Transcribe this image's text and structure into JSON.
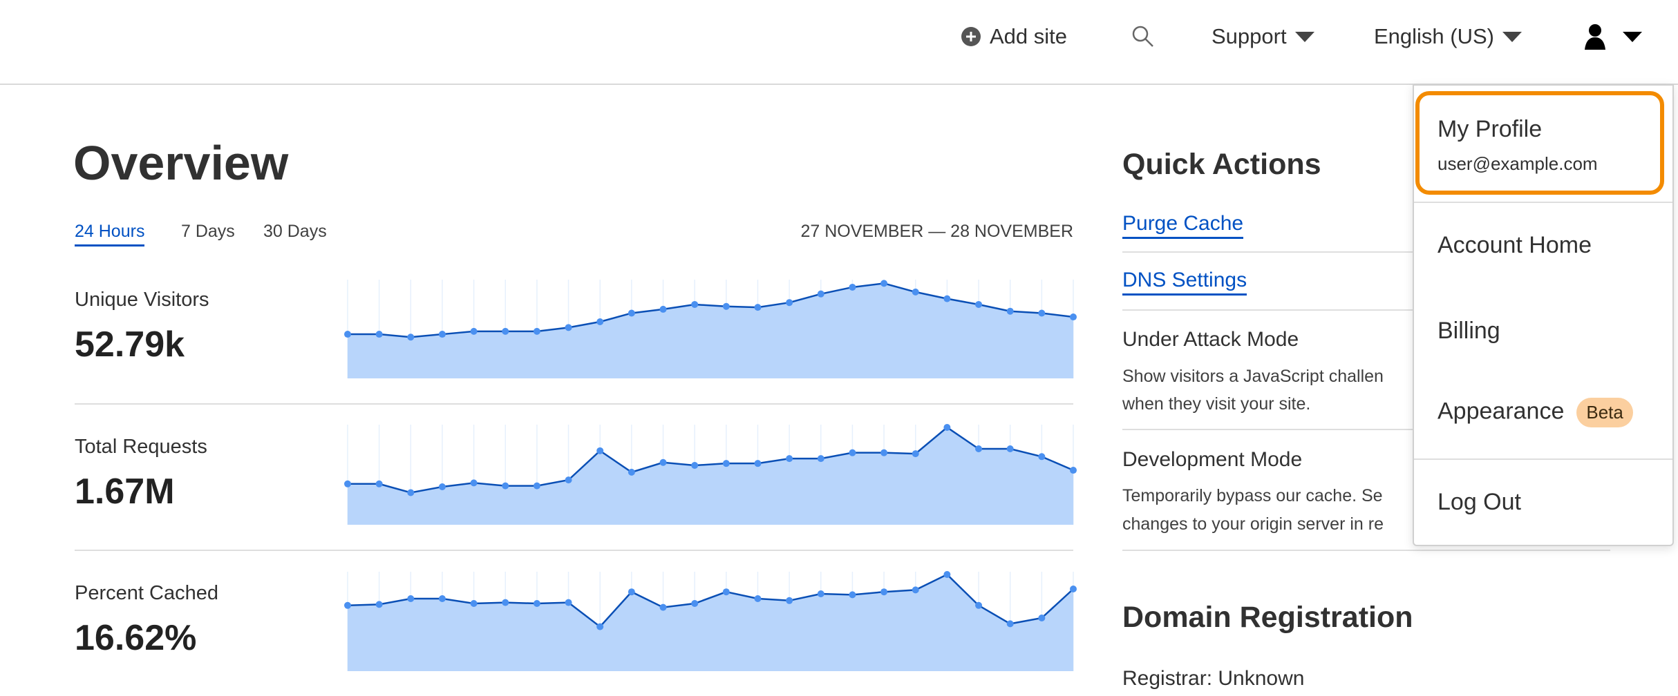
{
  "header": {
    "add_site_label": "Add site",
    "add_site_icon": "plus-circle-icon",
    "search_icon": "search-icon",
    "support_label": "Support",
    "language_label": "English (US)",
    "user_icon": "user-icon"
  },
  "overview": {
    "title": "Overview",
    "tabs": [
      {
        "label": "24 Hours",
        "active": true
      },
      {
        "label": "7 Days",
        "active": false
      },
      {
        "label": "30 Days",
        "active": false
      }
    ],
    "date_range": "27 NOVEMBER — 28 NOVEMBER",
    "metrics": [
      {
        "label": "Unique Visitors",
        "value": "52.79k"
      },
      {
        "label": "Total Requests",
        "value": "1.67M"
      },
      {
        "label": "Percent Cached",
        "value": "16.62%"
      }
    ]
  },
  "chart_data": [
    {
      "type": "area",
      "series_label": "Unique Visitors",
      "ylim": [
        0,
        100
      ],
      "values": [
        46,
        46,
        43,
        46,
        49,
        49,
        49,
        53,
        59,
        68,
        72,
        77,
        75,
        74,
        79,
        88,
        95,
        99,
        90,
        83,
        77,
        70,
        68,
        64
      ]
    },
    {
      "type": "area",
      "series_label": "Total Requests",
      "ylim": [
        0,
        100
      ],
      "values": [
        42,
        42,
        33,
        39,
        43,
        40,
        40,
        46,
        76,
        54,
        64,
        61,
        63,
        63,
        68,
        68,
        74,
        74,
        73,
        100,
        78,
        78,
        70,
        56
      ]
    },
    {
      "type": "area",
      "series_label": "Percent Cached",
      "ylim": [
        0,
        100
      ],
      "values": [
        68,
        69,
        75,
        75,
        70,
        71,
        70,
        71,
        46,
        82,
        66,
        70,
        82,
        75,
        73,
        80,
        79,
        82,
        84,
        100,
        68,
        49,
        55,
        85
      ]
    }
  ],
  "colors": {
    "accent": "#0051c3",
    "area_fill": "#b8d5fb",
    "line": "#0a4fb5",
    "point": "#4a90f0",
    "focus": "#f38b00",
    "badge": "#fbcf9f"
  },
  "quick_actions": {
    "title": "Quick Actions",
    "purge_cache": "Purge Cache",
    "dns_settings": "DNS Settings",
    "under_attack_title": "Under Attack Mode",
    "under_attack_desc_1": "Show visitors a JavaScript challen",
    "under_attack_desc_2": "when they visit your site.",
    "dev_mode_title": "Development Mode",
    "dev_mode_desc_1": "Temporarily bypass our cache. Se",
    "dev_mode_desc_2": "changes to your origin server in re"
  },
  "domain_registration": {
    "title": "Domain Registration",
    "registrar": "Registrar: Unknown"
  },
  "user_menu": {
    "profile_label": "My Profile",
    "email": "user@example.com",
    "account_home": "Account Home",
    "billing": "Billing",
    "appearance": "Appearance",
    "appearance_badge": "Beta",
    "log_out": "Log Out"
  }
}
